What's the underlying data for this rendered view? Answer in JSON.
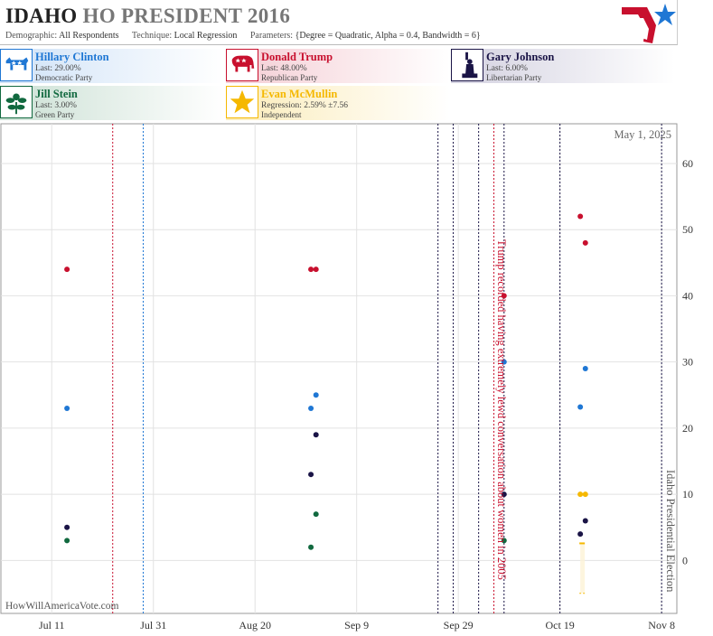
{
  "header": {
    "state": "IDAHO",
    "title_rest": "HO PRESIDENT 2016",
    "demographic_label": "Demographic:",
    "demographic_value": "All Respondents",
    "technique_label": "Technique:",
    "technique_value": "Local Regression",
    "parameters_label": "Parameters:",
    "parameters_value": "{Degree = Quadratic, Alpha = 0.4, Bandwidth = 6}"
  },
  "candidates": [
    {
      "id": "clinton",
      "name": "Hillary Clinton",
      "stat": "Last: 29.00%",
      "party": "Democratic Party",
      "color": "#1f77d4",
      "icon": "donkey-icon"
    },
    {
      "id": "trump",
      "name": "Donald Trump",
      "stat": "Last: 48.00%",
      "party": "Republican Party",
      "color": "#c8102e",
      "icon": "elephant-icon"
    },
    {
      "id": "johnson",
      "name": "Gary Johnson",
      "stat": "Last: 6.00%",
      "party": "Libertarian Party",
      "color": "#1a1446",
      "icon": "statue-of-liberty-icon"
    },
    {
      "id": "stein",
      "name": "Jill Stein",
      "stat": "Last: 3.00%",
      "party": "Green Party",
      "color": "#11693f",
      "icon": "flower-icon"
    },
    {
      "id": "mcmullin",
      "name": "Evan McMullin",
      "stat": "Regression: 2.59% ±7.56",
      "party": "Independent",
      "color": "#f5b800",
      "icon": "star-icon"
    }
  ],
  "chart_data": {
    "type": "scatter",
    "date_label": "May 1, 2025",
    "watermark": "HowWillAmericaVote.com",
    "x_ticks": [
      "Jul 11",
      "Jul 31",
      "Aug 20",
      "Sep 9",
      "Sep 29",
      "Oct 19",
      "Nov 8"
    ],
    "x_range": [
      "2016-07-01",
      "2016-11-11"
    ],
    "ylim": [
      -8,
      66
    ],
    "y_ticks": [
      0,
      10,
      20,
      30,
      40,
      50,
      60
    ],
    "grid": true,
    "event_lines": [
      {
        "date": "2016-07-23",
        "color": "#c8102e"
      },
      {
        "date": "2016-07-29",
        "color": "#1f77d4"
      },
      {
        "date": "2016-09-25",
        "color": "#1a1446"
      },
      {
        "date": "2016-09-28",
        "color": "#1a1446"
      },
      {
        "date": "2016-10-03",
        "color": "#1a1446"
      },
      {
        "date": "2016-10-06",
        "color": "#c8102e"
      },
      {
        "date": "2016-10-08",
        "color": "#1a1446"
      },
      {
        "date": "2016-10-19",
        "color": "#1a1446"
      },
      {
        "date": "2016-11-08",
        "color": "#1a1446"
      }
    ],
    "annotations": [
      {
        "text": "Trump recorded having extremely lewd conversation about women in 2005",
        "date": "2016-10-07",
        "color": "#c8102e"
      },
      {
        "text": "Idaho Presidential Election",
        "date": "2016-11-09",
        "color": "#555555"
      }
    ],
    "series": [
      {
        "name": "Hillary Clinton",
        "color": "#1f77d4",
        "points": [
          [
            "2016-07-14",
            23
          ],
          [
            "2016-08-31",
            23
          ],
          [
            "2016-09-01",
            25
          ],
          [
            "2016-10-08",
            30
          ],
          [
            "2016-10-23",
            23.2
          ],
          [
            "2016-10-24",
            29
          ]
        ]
      },
      {
        "name": "Donald Trump",
        "color": "#c8102e",
        "points": [
          [
            "2016-07-14",
            44
          ],
          [
            "2016-08-31",
            44
          ],
          [
            "2016-09-01",
            44
          ],
          [
            "2016-10-08",
            40
          ],
          [
            "2016-10-23",
            52
          ],
          [
            "2016-10-24",
            48
          ]
        ]
      },
      {
        "name": "Gary Johnson",
        "color": "#1a1446",
        "points": [
          [
            "2016-07-14",
            5
          ],
          [
            "2016-08-31",
            13
          ],
          [
            "2016-09-01",
            19
          ],
          [
            "2016-10-08",
            10
          ],
          [
            "2016-10-23",
            4
          ],
          [
            "2016-10-24",
            6
          ]
        ]
      },
      {
        "name": "Jill Stein",
        "color": "#11693f",
        "points": [
          [
            "2016-07-14",
            3
          ],
          [
            "2016-08-31",
            2
          ],
          [
            "2016-09-01",
            7
          ],
          [
            "2016-10-08",
            3
          ]
        ]
      },
      {
        "name": "Evan McMullin",
        "color": "#f5b800",
        "points": [
          [
            "2016-10-23",
            10
          ],
          [
            "2016-10-24",
            10
          ]
        ]
      }
    ]
  }
}
